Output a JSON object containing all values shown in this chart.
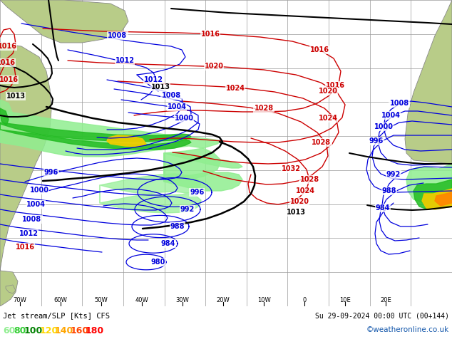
{
  "title_left": "Jet stream/SLP [Kts] CFS",
  "title_right": "Su 29-09-2024 00:00 UTC (00+144)",
  "copyright": "©weatheronline.co.uk",
  "legend_values": [
    60,
    80,
    100,
    120,
    140,
    160,
    180
  ],
  "legend_colors": [
    "#90ee90",
    "#32cd32",
    "#008000",
    "#ffd700",
    "#ffa500",
    "#ff4500",
    "#ff0000"
  ],
  "ocean_color": "#c8d4e0",
  "land_color": "#b8cc88",
  "grid_color": "#999999",
  "slp_blue_color": "#0000dd",
  "slp_red_color": "#cc0000",
  "jet_lgreen": "#90ee90",
  "jet_dgreen": "#22bb22",
  "jet_yellow": "#eecc00",
  "jet_orange": "#ff8800",
  "bottom_bg": "#000033",
  "bottom_text": "#cccccc",
  "figsize": [
    6.34,
    4.9
  ],
  "dpi": 100
}
